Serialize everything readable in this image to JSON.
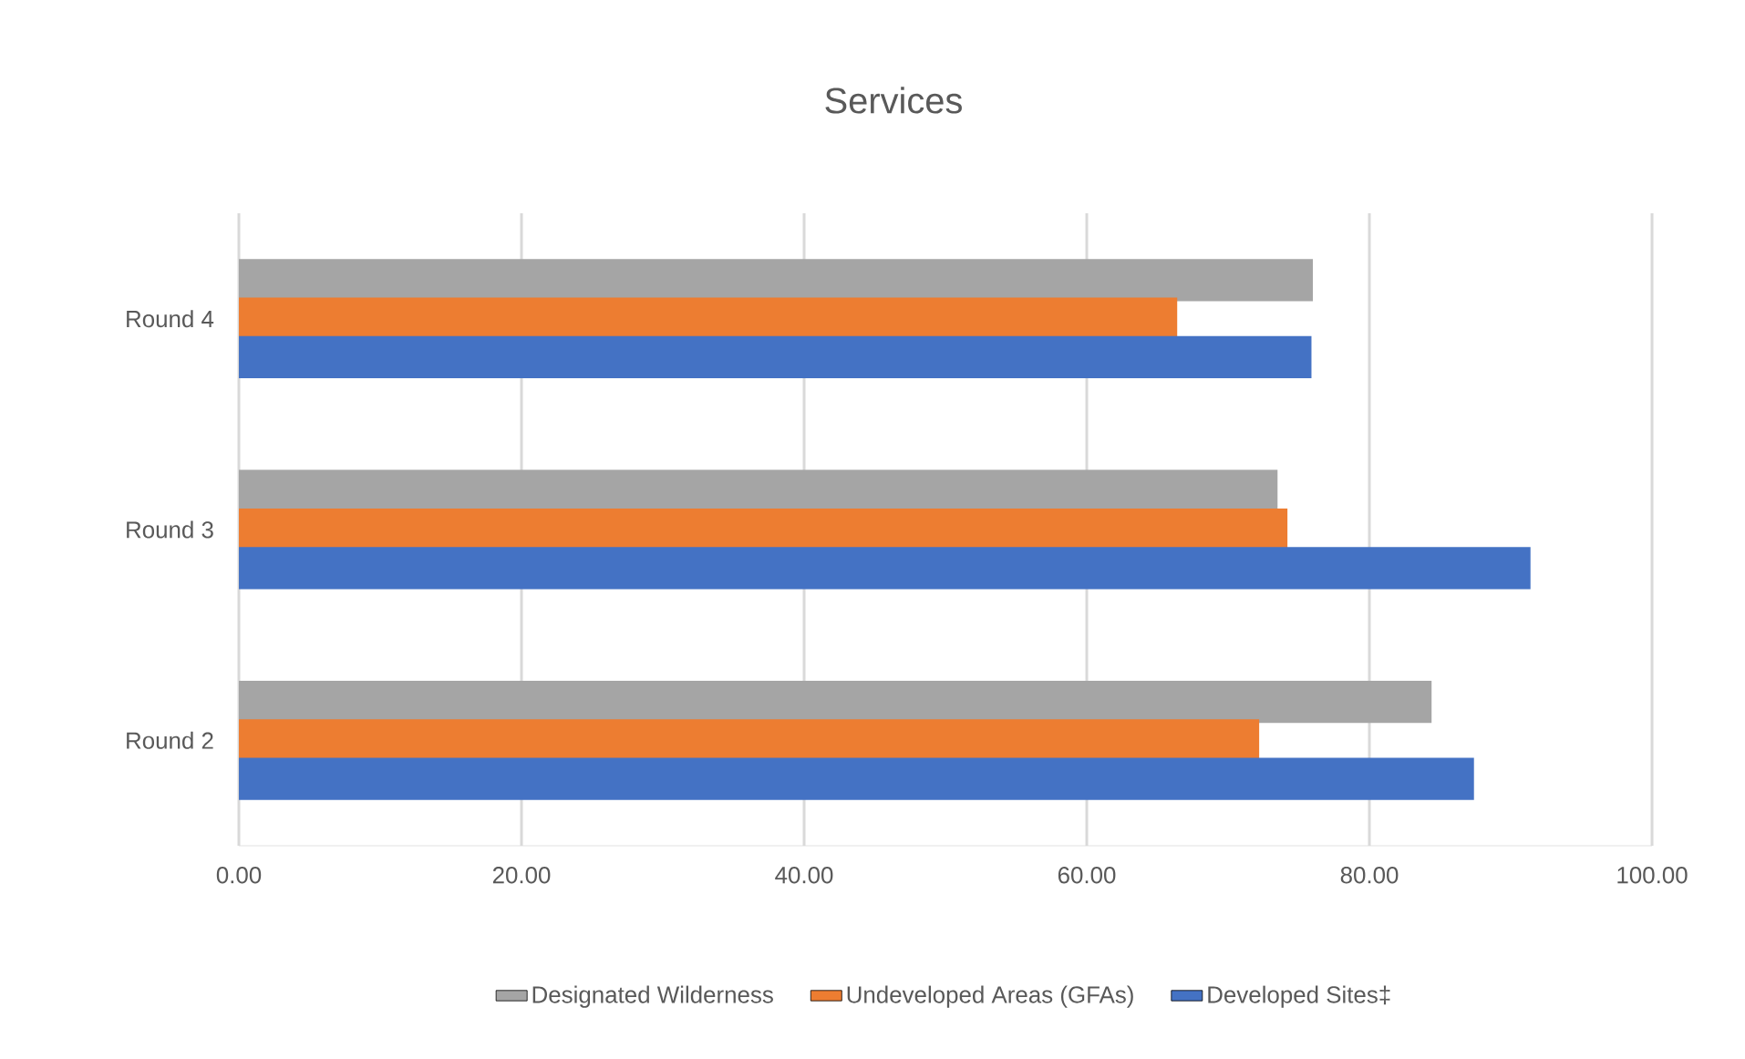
{
  "chart_data": {
    "type": "bar",
    "orientation": "horizontal",
    "title": "Services",
    "categories": [
      "Round 4",
      "Round 3",
      "Round 2"
    ],
    "series": [
      {
        "name": "Designated Wilderness",
        "color": "#a5a5a5",
        "values": [
          76.0,
          73.5,
          84.4
        ]
      },
      {
        "name": "Undeveloped Areas (GFAs)",
        "color": "#ed7d31",
        "values": [
          66.4,
          74.2,
          72.2
        ]
      },
      {
        "name": "Developed Sites‡",
        "color": "#4472c4",
        "values": [
          75.9,
          91.4,
          87.4
        ]
      }
    ],
    "xlim": [
      0,
      100
    ],
    "xticks": [
      {
        "value": 0,
        "label": "0.00"
      },
      {
        "value": 20,
        "label": "20.00"
      },
      {
        "value": 40,
        "label": "40.00"
      },
      {
        "value": 60,
        "label": "60.00"
      },
      {
        "value": 80,
        "label": "80.00"
      },
      {
        "value": 100,
        "label": "100.00"
      }
    ],
    "grid": "x",
    "legend": "bottom"
  }
}
